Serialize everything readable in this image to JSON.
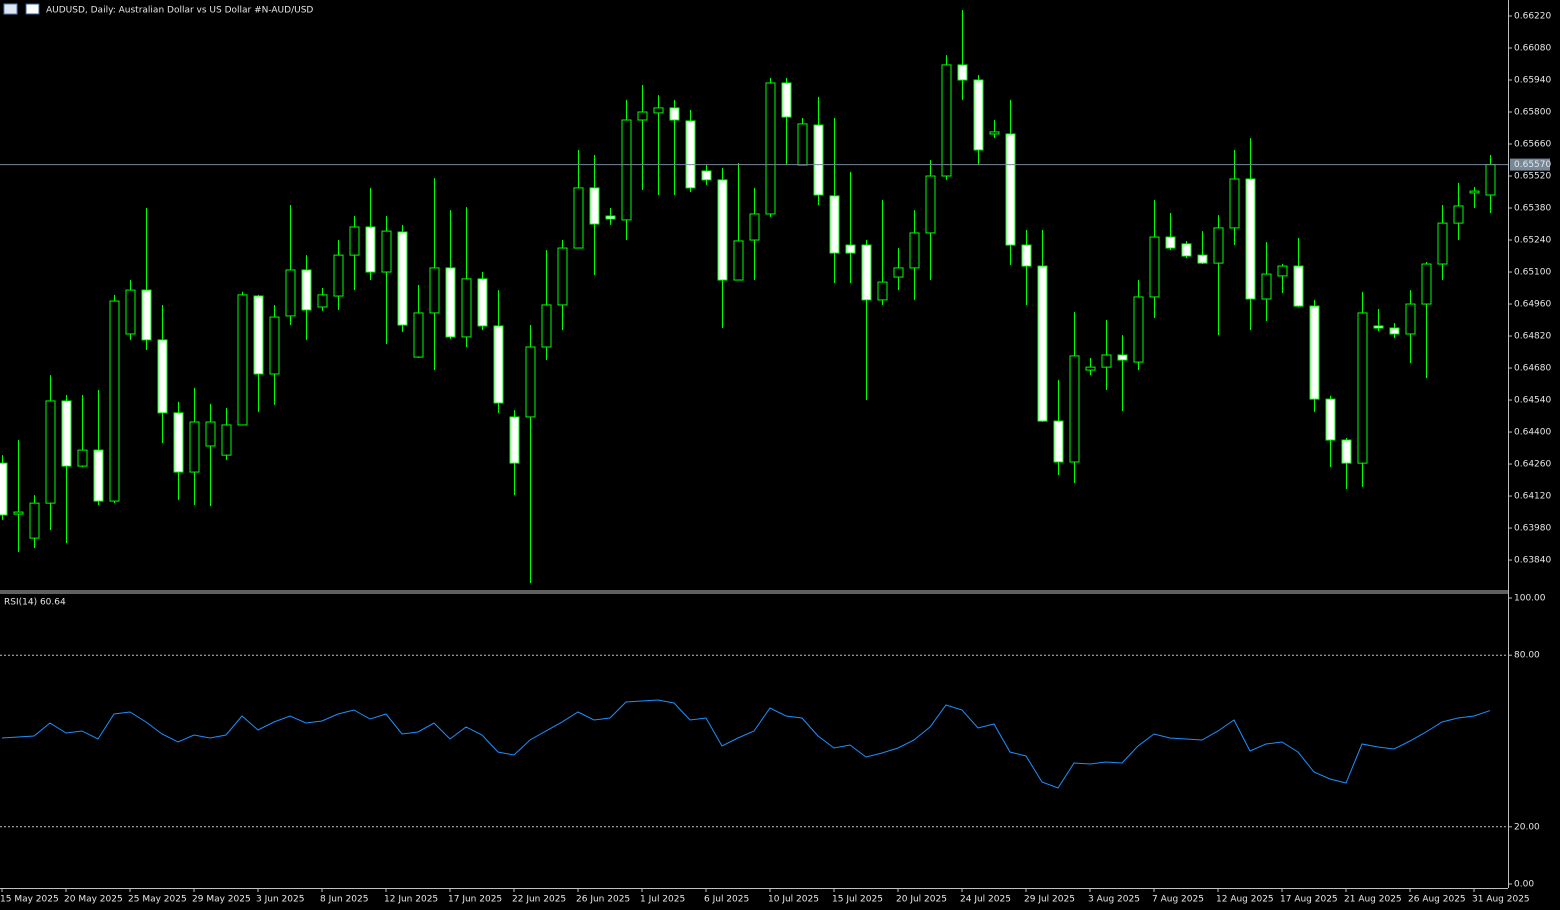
{
  "chart_data": [
    {
      "type": "candlestick",
      "title": "AUDUSD, Daily:  Australian Dollar vs US Dollar #N-AUD/USD",
      "categories": [
        "15 May 2025",
        null,
        null,
        null,
        "20 May 2025",
        null,
        null,
        null,
        "25 May 2025",
        null,
        null,
        null,
        "29 May 2025",
        null,
        null,
        null,
        "3 Jun 2025",
        null,
        null,
        null,
        "8 Jun 2025",
        null,
        null,
        null,
        "12 Jun 2025",
        null,
        null,
        null,
        "17 Jun 2025",
        null,
        null,
        null,
        "22 Jun 2025",
        null,
        null,
        null,
        "26 Jun 2025",
        null,
        null,
        null,
        "1 Jul 2025",
        null,
        null,
        null,
        "6 Jul 2025",
        null,
        null,
        null,
        "10 Jul 2025",
        null,
        null,
        null,
        "15 Jul 2025",
        null,
        null,
        null,
        "20 Jul 2025",
        null,
        null,
        null,
        "24 Jul 2025",
        null,
        null,
        null,
        "29 Jul 2025",
        null,
        null,
        null,
        "3 Aug 2025",
        null,
        null,
        null,
        "7 Aug 2025",
        null,
        null,
        null,
        "12 Aug 2025",
        null,
        null,
        null,
        "17 Aug 2025",
        null,
        null,
        null,
        "21 Aug 2025",
        null,
        null,
        null,
        "26 Aug 2025",
        null,
        null,
        null,
        "31 Aug 2025",
        null
      ],
      "open": [
        0.64264,
        0.64041,
        0.63936,
        0.64089,
        0.64536,
        0.64251,
        0.64321,
        0.64098,
        0.64829,
        0.65021,
        0.64803,
        0.64484,
        0.64225,
        0.64339,
        0.64299,
        0.64431,
        0.64995,
        0.64654,
        0.64908,
        0.65109,
        0.64947,
        0.64995,
        0.65174,
        0.65297,
        0.651,
        0.65275,
        0.64728,
        0.64921,
        0.65118,
        0.64816,
        0.6507,
        0.64864,
        0.64466,
        0.64466,
        0.64772,
        0.64956,
        0.65205,
        0.65468,
        0.65345,
        0.65328,
        0.65765,
        0.65796,
        0.65818,
        0.65761,
        0.65542,
        0.65503,
        0.65065,
        0.6524,
        0.65354,
        0.65927,
        0.65568,
        0.65743,
        0.65433,
        0.65218,
        0.65218,
        0.64978,
        0.65078,
        0.65118,
        0.65271,
        0.6552,
        0.66006,
        0.6594,
        0.65704,
        0.65704,
        0.65218,
        0.65126,
        0.64448,
        0.64269,
        0.64671,
        0.64684,
        0.64737,
        0.64706,
        0.64991,
        0.65253,
        0.65223,
        0.65174,
        0.65139,
        0.65293,
        0.65507,
        0.64982,
        0.65083,
        0.65126,
        0.64951,
        0.64544,
        0.64365,
        0.64264,
        0.64864,
        0.64855,
        0.64829,
        0.6496,
        0.65135,
        0.65314,
        0.65446,
        0.65437
      ],
      "high": [
        0.64299,
        0.64365,
        0.64124,
        0.64649,
        0.64562,
        0.64562,
        0.64584,
        0.65,
        0.65065,
        0.6538,
        0.64956,
        0.64532,
        0.64593,
        0.64523,
        0.64505,
        0.65013,
        0.65,
        0.64956,
        0.65393,
        0.65174,
        0.6503,
        0.6524,
        0.65345,
        0.65468,
        0.65345,
        0.65306,
        0.65043,
        0.65511,
        0.65371,
        0.65384,
        0.651,
        0.65021,
        0.64496,
        0.64868,
        0.65196,
        0.6524,
        0.65634,
        0.65612,
        0.6538,
        0.65853,
        0.65918,
        0.65874,
        0.65853,
        0.65809,
        0.65568,
        0.65555,
        0.65577,
        0.65468,
        0.65949,
        0.65949,
        0.65774,
        0.65866,
        0.65774,
        0.65538,
        0.6524,
        0.65415,
        0.65205,
        0.65371,
        0.6559,
        0.66049,
        0.66246,
        0.65962,
        0.65765,
        0.65853,
        0.65284,
        0.65284,
        0.64628,
        0.64925,
        0.64724,
        0.6489,
        0.64824,
        0.65065,
        0.65415,
        0.65358,
        0.65236,
        0.65279,
        0.65349,
        0.65634,
        0.65686,
        0.65231,
        0.65135,
        0.65249,
        0.64978,
        0.64558,
        0.64374,
        0.65013,
        0.64938,
        0.64877,
        0.65021,
        0.65144,
        0.65393,
        0.6549,
        0.65472,
        0.65612
      ],
      "low": [
        0.64015,
        0.63875,
        0.63893,
        0.63971,
        0.63914,
        0.64247,
        0.64081,
        0.64089,
        0.64803,
        0.64759,
        0.64352,
        0.64103,
        0.64081,
        0.64076,
        0.64278,
        0.64431,
        0.64488,
        0.64519,
        0.64868,
        0.64803,
        0.6493,
        0.64934,
        0.65021,
        0.65065,
        0.64785,
        0.64838,
        0.64724,
        0.64671,
        0.64807,
        0.64772,
        0.64846,
        0.64484,
        0.64124,
        0.63739,
        0.64715,
        0.64846,
        0.65205,
        0.65087,
        0.65306,
        0.6524,
        0.65459,
        0.65437,
        0.65437,
        0.6545,
        0.65481,
        0.64855,
        0.65065,
        0.65065,
        0.65341,
        0.65568,
        0.65568,
        0.65393,
        0.65052,
        0.65052,
        0.6454,
        0.64956,
        0.65021,
        0.64978,
        0.65065,
        0.65503,
        0.65853,
        0.65568,
        0.65686,
        0.65131,
        0.64956,
        0.64444,
        0.64212,
        0.64177,
        0.64649,
        0.64584,
        0.64492,
        0.64671,
        0.64899,
        0.65196,
        0.65161,
        0.65135,
        0.64824,
        0.65218,
        0.64846,
        0.64886,
        0.65008,
        0.64947,
        0.64488,
        0.64247,
        0.64151,
        0.6416,
        0.64842,
        0.64811,
        0.64702,
        0.64636,
        0.65065,
        0.6524,
        0.6538,
        0.65358
      ],
      "close": [
        0.64037,
        0.6405,
        0.64089,
        0.64536,
        0.64251,
        0.64321,
        0.64098,
        0.64973,
        0.65021,
        0.64803,
        0.64484,
        0.64225,
        0.64444,
        0.64444,
        0.64431,
        0.65,
        0.64654,
        0.64903,
        0.65109,
        0.64934,
        0.65,
        0.65174,
        0.65297,
        0.651,
        0.65279,
        0.64868,
        0.64921,
        0.65118,
        0.64816,
        0.6507,
        0.64864,
        0.64527,
        0.64264,
        0.64772,
        0.64956,
        0.65205,
        0.65468,
        0.6531,
        0.65332,
        0.65765,
        0.658,
        0.65818,
        0.65765,
        0.65468,
        0.65503,
        0.65065,
        0.65236,
        0.65354,
        0.65927,
        0.65778,
        0.65748,
        0.65437,
        0.65183,
        0.65183,
        0.64978,
        0.65056,
        0.65118,
        0.65271,
        0.6552,
        0.66006,
        0.6594,
        0.65634,
        0.65713,
        0.65218,
        0.65126,
        0.64448,
        0.64269,
        0.64733,
        0.64684,
        0.64737,
        0.64715,
        0.64991,
        0.65253,
        0.65205,
        0.6517,
        0.65139,
        0.65293,
        0.65507,
        0.64982,
        0.65091,
        0.65126,
        0.64951,
        0.64544,
        0.64365,
        0.64264,
        0.64921,
        0.64855,
        0.64829,
        0.6496,
        0.65135,
        0.65314,
        0.65389,
        0.65454,
        0.6557
      ],
      "ylim": [
        0.63709,
        0.6629
      ],
      "yticks": [
        {
          "value": 0.6622,
          "label": "0.66220"
        },
        {
          "value": 0.6608,
          "label": "0.66080"
        },
        {
          "value": 0.6594,
          "label": "0.65940"
        },
        {
          "value": 0.658,
          "label": "0.65800"
        },
        {
          "value": 0.6566,
          "label": "0.65660"
        },
        {
          "value": 0.6552,
          "label": "0.65520"
        },
        {
          "value": 0.6538,
          "label": "0.65380"
        },
        {
          "value": 0.6524,
          "label": "0.65240"
        },
        {
          "value": 0.651,
          "label": "0.65100"
        },
        {
          "value": 0.6496,
          "label": "0.64960"
        },
        {
          "value": 0.6482,
          "label": "0.64820"
        },
        {
          "value": 0.6468,
          "label": "0.64680"
        },
        {
          "value": 0.6454,
          "label": "0.64540"
        },
        {
          "value": 0.644,
          "label": "0.64400"
        },
        {
          "value": 0.6426,
          "label": "0.64260"
        },
        {
          "value": 0.6412,
          "label": "0.64120"
        },
        {
          "value": 0.6398,
          "label": "0.63980"
        },
        {
          "value": 0.6384,
          "label": "0.63840"
        }
      ],
      "current_price": {
        "value": 0.6557,
        "label": "0.65570"
      },
      "bull_color": "#000000",
      "bear_color": "#ffffff",
      "wick_color": "#00ff00"
    },
    {
      "type": "line",
      "title": "RSI(14) 60.64",
      "values": [
        51.05,
        51.4,
        51.75,
        56.29,
        52.8,
        53.5,
        50.7,
        59.44,
        60.14,
        56.64,
        52.45,
        49.65,
        52.1,
        51.05,
        52.1,
        58.74,
        53.85,
        56.64,
        58.74,
        56.29,
        56.99,
        59.44,
        60.84,
        57.69,
        59.44,
        52.45,
        53.15,
        56.29,
        50.7,
        54.9,
        52.1,
        46.15,
        45.1,
        50.35,
        53.5,
        56.64,
        60.14,
        57.34,
        58.04,
        63.64,
        63.99,
        64.34,
        63.29,
        57.34,
        58.04,
        48.25,
        51.05,
        53.5,
        61.54,
        58.74,
        58.04,
        51.75,
        47.55,
        48.6,
        44.41,
        45.8,
        47.55,
        50.35,
        54.9,
        62.59,
        60.84,
        54.55,
        55.94,
        46.15,
        44.76,
        35.66,
        33.57,
        42.31,
        41.96,
        42.66,
        42.31,
        48.25,
        52.45,
        51.05,
        50.7,
        50.35,
        53.5,
        57.34,
        46.5,
        48.95,
        49.65,
        46.15,
        39.16,
        36.71,
        35.31,
        48.95,
        47.9,
        47.2,
        50,
        53.15,
        56.64,
        58.04,
        58.74,
        60.64
      ],
      "color": "#1e90ff",
      "ylim": [
        -1.4,
        101.4
      ],
      "yticks": [
        {
          "value": 100,
          "label": "100.00"
        },
        {
          "value": 80,
          "label": "80.00"
        },
        {
          "value": 20,
          "label": "20.00"
        },
        {
          "value": 0,
          "label": "0.00"
        }
      ],
      "levels": [
        80,
        20
      ]
    }
  ]
}
